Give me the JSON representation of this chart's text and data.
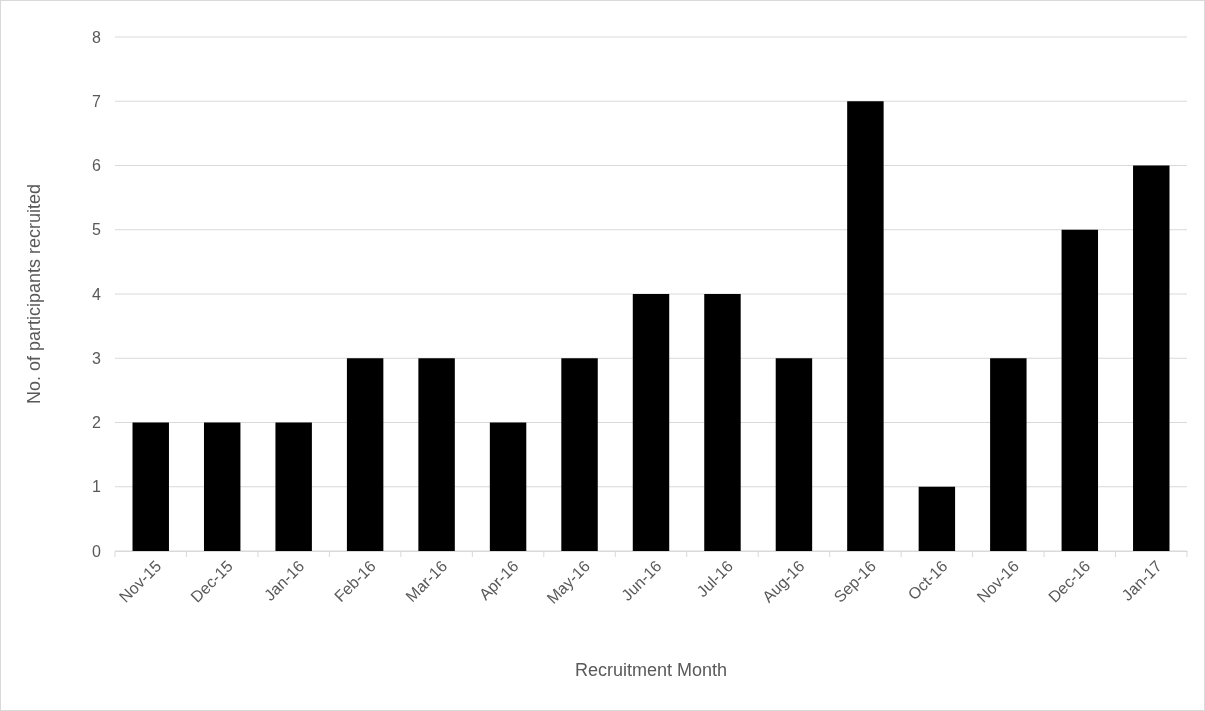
{
  "chart_data": {
    "type": "bar",
    "xlabel": "Recruitment Month",
    "ylabel": "No. of participants recruited",
    "categories": [
      "Nov-15",
      "Dec-15",
      "Jan-16",
      "Feb-16",
      "Mar-16",
      "Apr-16",
      "May-16",
      "Jun-16",
      "Jul-16",
      "Aug-16",
      "Sep-16",
      "Oct-16",
      "Nov-16",
      "Dec-16",
      "Jan-17"
    ],
    "values": [
      2,
      2,
      2,
      3,
      3,
      2,
      3,
      4,
      4,
      3,
      7,
      1,
      3,
      5,
      6
    ],
    "color": "#000000",
    "ylim": [
      0,
      8
    ],
    "yticks": [
      0,
      1,
      2,
      3,
      4,
      5,
      6,
      7,
      8
    ],
    "grid": "y"
  }
}
